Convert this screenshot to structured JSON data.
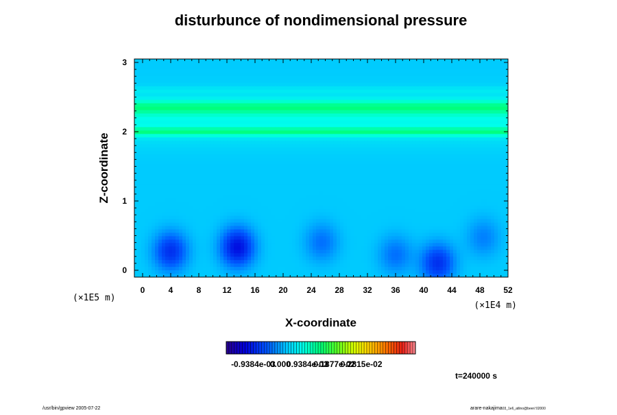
{
  "chart_data": {
    "type": "heatmap",
    "title": "disturbunce of nondimensional pressure",
    "xlabel": "X-coordinate",
    "ylabel": "Z-coordinate",
    "x_ticks": [
      "0",
      "4",
      "8",
      "12",
      "16",
      "20",
      "24",
      "28",
      "32",
      "36",
      "40",
      "44",
      "48",
      "52"
    ],
    "y_ticks": [
      "0",
      "1",
      "2",
      "3"
    ],
    "xlim": [
      0,
      52
    ],
    "ylim": [
      -0.1,
      3.05
    ],
    "x_unit_label": "(×1E4 m)",
    "y_unit_label": "(×1E5 m)",
    "colorbar": {
      "tick_labels": [
        "-0.9384e-03",
        "0.000",
        "0.9384e-03",
        "0.1877e-02",
        "0.2815e-02"
      ],
      "range": [
        -0.0018768,
        0.004692
      ]
    },
    "fields": {
      "background_value": 0.00025,
      "bands": [
        {
          "z_center": 2.35,
          "z_halfwidth": 0.1,
          "value": 0.0011
        },
        {
          "z_center": 2.0,
          "z_halfwidth": 0.06,
          "value": 0.00115
        },
        {
          "z_center": 2.2,
          "z_halfwidth": 0.35,
          "value": 0.00075
        },
        {
          "z_center": 2.6,
          "z_halfwidth": 0.05,
          "value": 0.00045
        }
      ],
      "lows": [
        {
          "x": 4,
          "z": 0.27,
          "value": -0.0008
        },
        {
          "x": 13.5,
          "z": 0.33,
          "value": -0.0011
        },
        {
          "x": 25.5,
          "z": 0.4,
          "value": -0.0003
        },
        {
          "x": 36,
          "z": 0.22,
          "value": -0.0003
        },
        {
          "x": 42,
          "z": 0.1,
          "value": -0.0008
        },
        {
          "x": 48.5,
          "z": 0.47,
          "value": -0.0002
        }
      ]
    },
    "annotations": [
      "t=240000 s"
    ]
  },
  "footer": {
    "left": "/usr/bin/gpview 2005-07-22",
    "right": "arare-nakajima",
    "right_sub": "03_1e6_atlino@beer/:02000"
  },
  "colors": {
    "background": "#00FFEE",
    "band": "#00FF66",
    "low": "#0066FF"
  }
}
